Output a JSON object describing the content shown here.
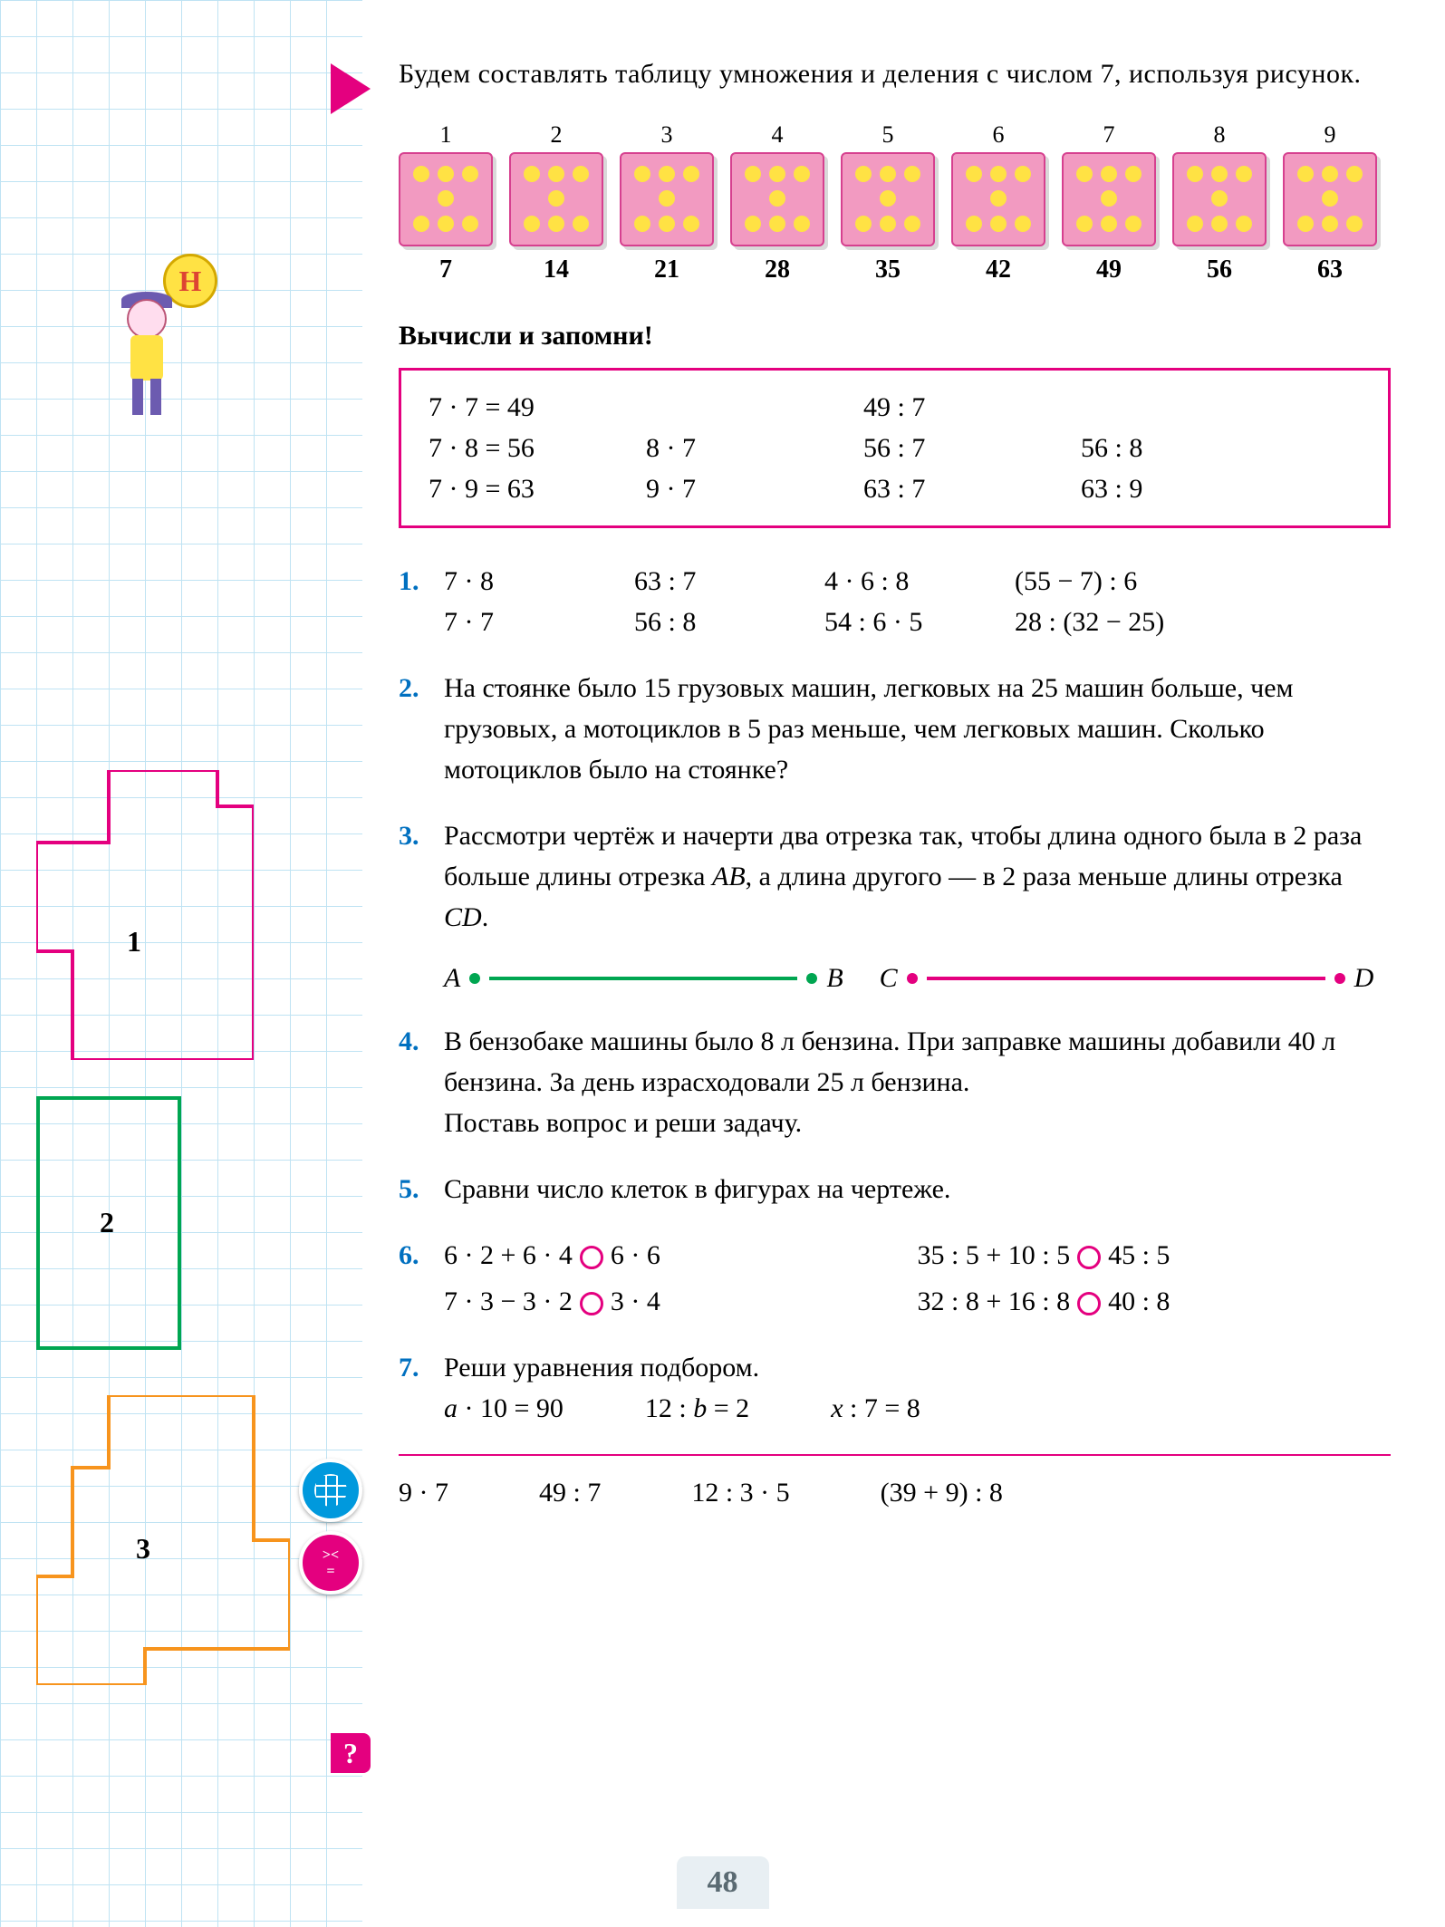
{
  "intro": "Будем составлять таблицу умножения и деления с числом 7, используя рисунок.",
  "dice": {
    "top": [
      "1",
      "2",
      "3",
      "4",
      "5",
      "6",
      "7",
      "8",
      "9"
    ],
    "bottom": [
      "7",
      "14",
      "21",
      "28",
      "35",
      "42",
      "49",
      "56",
      "63"
    ]
  },
  "subheading": "Вычисли и запомни!",
  "calc_box": [
    [
      "7 · 7 = 49",
      "",
      "49 : 7",
      ""
    ],
    [
      "7 · 8 = 56",
      "8 · 7",
      "56 : 7",
      "56 : 8"
    ],
    [
      "7 · 9 = 63",
      "9 · 7",
      "63 : 7",
      "63 : 9"
    ]
  ],
  "task1": {
    "num": "1.",
    "rows": [
      [
        "7 · 8",
        "63 : 7",
        "4 · 6 : 8",
        "(55 − 7) : 6"
      ],
      [
        "7 · 7",
        "56 : 8",
        "54 : 6 · 5",
        "28 : (32 − 25)"
      ]
    ]
  },
  "task2": {
    "num": "2.",
    "text": "На стоянке было 15 грузовых машин, легковых на 25 машин больше, чем грузовых, а мотоциклов в 5 раз меньше, чем легковых машин. Сколько мотоциклов было на стоянке?"
  },
  "task3": {
    "num": "3.",
    "text_parts": [
      "Рассмотри чертёж и начерти два отрезка так, чтобы длина одного была в 2 раза больше длины отрезка ",
      "AB",
      ", а длина другого — в 2 раза меньше длины отрезка ",
      "CD",
      "."
    ]
  },
  "segments": {
    "a": "A",
    "b": "B",
    "c": "C",
    "d": "D"
  },
  "task4": {
    "num": "4.",
    "text": "В бензобаке машины было 8 л бензина. При заправке машины добавили 40 л бензина. За день израсходовали 25 л бензина.",
    "text2": "Поставь вопрос и реши задачу."
  },
  "task5": {
    "num": "5.",
    "text": "Сравни число клеток в фигурах на чертеже."
  },
  "task6": {
    "num": "6.",
    "rows": [
      {
        "l1": "6 · 2 + 6 · 4",
        "r1": "6 · 6",
        "l2": "35 : 5 + 10 : 5",
        "r2": "45 : 5"
      },
      {
        "l1": "7 · 3 − 3 · 2",
        "r1": "3 · 4",
        "l2": "32 : 8 + 16 : 8",
        "r2": "40 : 8"
      }
    ]
  },
  "task7": {
    "num": "7.",
    "text": "Реши уравнения подбором.",
    "eqs": [
      "a · 10 = 90",
      "12 : b = 2",
      "x : 7 = 8"
    ]
  },
  "footer": [
    "9 · 7",
    "49 : 7",
    "12 : 3 · 5",
    "(39 + 9) : 8"
  ],
  "page_number": "48",
  "q_marker": "?",
  "balloon_letter": "Н",
  "shape_labels": {
    "s1": "1",
    "s2": "2",
    "s3": "3"
  },
  "badge_pink_label": "><",
  "colors": {
    "magenta": "#e4007f",
    "blue": "#0070c0",
    "green": "#00a651",
    "dice_bg": "#f29ac1",
    "dot": "#ffe244",
    "grid": "#bfe3f3"
  }
}
